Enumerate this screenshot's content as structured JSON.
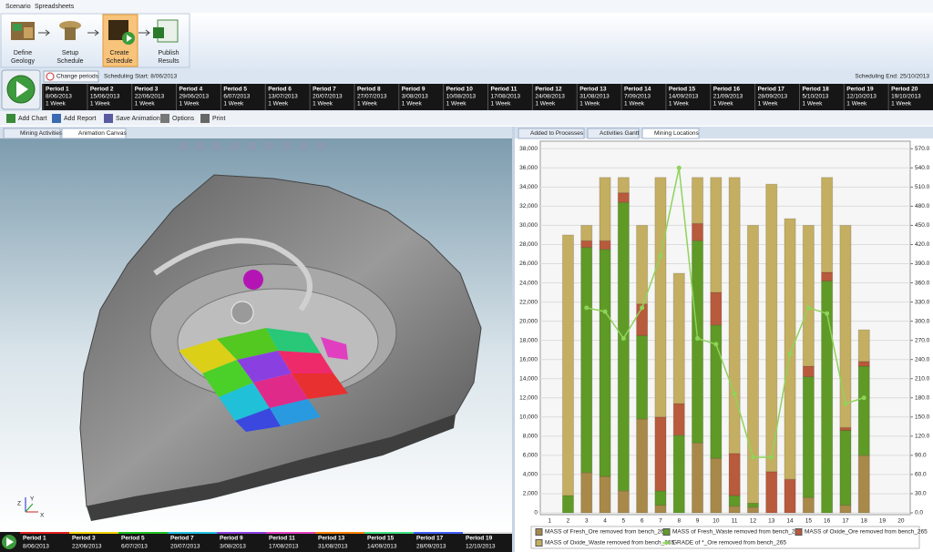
{
  "menu": [
    "Scenario",
    "Spreadsheets"
  ],
  "workflow": [
    {
      "lines": [
        "Define",
        "Geology"
      ]
    },
    {
      "lines": [
        "Setup",
        "Schedule"
      ]
    },
    {
      "lines": [
        "Create",
        "Schedule"
      ]
    },
    {
      "lines": [
        "Publish",
        "Results"
      ]
    }
  ],
  "scheduler": {
    "change_periods": "Change periods",
    "start": "Scheduling Start: 8/06/2013",
    "end": "Scheduling End: 25/10/2013",
    "periods": [
      {
        "name": "Period 1",
        "date": "8/06/2013",
        "length": "1 Week"
      },
      {
        "name": "Period 2",
        "date": "15/06/2013",
        "length": "1 Week"
      },
      {
        "name": "Period 3",
        "date": "22/06/2013",
        "length": "1 Week"
      },
      {
        "name": "Period 4",
        "date": "29/06/2013",
        "length": "1 Week"
      },
      {
        "name": "Period 5",
        "date": "6/07/2013",
        "length": "1 Week"
      },
      {
        "name": "Period 6",
        "date": "13/07/2013",
        "length": "1 Week"
      },
      {
        "name": "Period 7",
        "date": "20/07/2013",
        "length": "1 Week"
      },
      {
        "name": "Period 8",
        "date": "27/07/2013",
        "length": "1 Week"
      },
      {
        "name": "Period 9",
        "date": "3/08/2013",
        "length": "1 Week"
      },
      {
        "name": "Period 10",
        "date": "10/08/2013",
        "length": "1 Week"
      },
      {
        "name": "Period 11",
        "date": "17/08/2013",
        "length": "1 Week"
      },
      {
        "name": "Period 12",
        "date": "24/08/2013",
        "length": "1 Week"
      },
      {
        "name": "Period 13",
        "date": "31/08/2013",
        "length": "1 Week"
      },
      {
        "name": "Period 14",
        "date": "7/09/2013",
        "length": "1 Week"
      },
      {
        "name": "Period 15",
        "date": "14/09/2013",
        "length": "1 Week"
      },
      {
        "name": "Period 16",
        "date": "21/09/2013",
        "length": "1 Week"
      },
      {
        "name": "Period 17",
        "date": "28/09/2013",
        "length": "1 Week"
      },
      {
        "name": "Period 18",
        "date": "5/10/2013",
        "length": "1 Week"
      },
      {
        "name": "Period 19",
        "date": "12/10/2013",
        "length": "1 Week"
      },
      {
        "name": "Period 20",
        "date": "19/10/2013",
        "length": "1 Week"
      }
    ]
  },
  "toolbar": [
    "Add Chart",
    "Add Report",
    "Save Animation",
    "Options",
    "Print"
  ],
  "left_tabs": [
    "Mining Activities",
    "Animation Canvas"
  ],
  "right_tabs": [
    "Added to Processes",
    "Activities Gantt",
    "Mining Locations"
  ],
  "view_axes": [
    "X",
    "Y",
    "Z"
  ],
  "chart_data": {
    "type": "bar",
    "stacked": true,
    "categories": [
      "1",
      "2",
      "3",
      "4",
      "5",
      "6",
      "7",
      "8",
      "9",
      "10",
      "11",
      "12",
      "13",
      "14",
      "15",
      "16",
      "17",
      "18",
      "19",
      "20"
    ],
    "series": [
      {
        "name": "MASS of Fresh_Ore removed from bench_265",
        "color": "#a8894a",
        "values": [
          0,
          0,
          4200,
          3800,
          2300,
          9800,
          800,
          0,
          7300,
          5700,
          700,
          600,
          0,
          0,
          1600,
          0,
          800,
          6000,
          0,
          0
        ]
      },
      {
        "name": "MASS of Fresh_Waste removed from bench_265",
        "color": "#5f9a26",
        "values": [
          0,
          1800,
          23500,
          23700,
          30100,
          8700,
          1500,
          8100,
          21100,
          13900,
          1100,
          400,
          0,
          0,
          12600,
          24200,
          7800,
          9300,
          0,
          0
        ]
      },
      {
        "name": "MASS of Oxide_Ore removed from bench_265",
        "color": "#b85a3c",
        "values": [
          0,
          0,
          700,
          900,
          1000,
          3300,
          7700,
          3300,
          1800,
          3400,
          4400,
          0,
          4300,
          3500,
          1100,
          900,
          300,
          500,
          0,
          0
        ]
      },
      {
        "name": "MASS of Oxide_Waste removed from bench_265",
        "color": "#c4ae62",
        "values": [
          0,
          27200,
          1600,
          6600,
          1600,
          8200,
          25000,
          13600,
          4800,
          12000,
          28800,
          29000,
          30000,
          27200,
          14700,
          9900,
          21100,
          3300,
          0,
          0
        ]
      },
      {
        "name": "GRADE of *_Ore removed from bench_265",
        "color": "#8fd35a",
        "type": "line",
        "axis": "y2",
        "values": [
          null,
          null,
          321,
          315,
          273,
          321,
          402,
          540,
          273,
          264,
          186,
          87,
          87,
          249,
          321,
          312,
          171,
          180,
          null,
          null
        ]
      }
    ],
    "ylim": [
      0,
      38500
    ],
    "yticks": [
      0,
      {
        "value": 2000,
        "label": "2,000"
      },
      {
        "value": 4000,
        "label": "4,000"
      },
      {
        "value": 6000,
        "label": "6,000"
      },
      {
        "value": 8000,
        "label": "8,000"
      },
      {
        "value": 10000,
        "label": "10,000"
      },
      {
        "value": 12000,
        "label": "12,000"
      },
      {
        "value": 14000,
        "label": "14,000"
      },
      {
        "value": 16000,
        "label": "16,000"
      },
      {
        "value": 18000,
        "label": "18,000"
      },
      {
        "value": 20000,
        "label": "20,000"
      },
      {
        "value": 22000,
        "label": "22,000"
      },
      {
        "value": 24000,
        "label": "24,000"
      },
      {
        "value": 26000,
        "label": "26,000"
      },
      {
        "value": 28000,
        "label": "28,000"
      },
      {
        "value": 30000,
        "label": "30,000"
      },
      {
        "value": 32000,
        "label": "32,000"
      },
      {
        "value": 34000,
        "label": "34,000"
      },
      {
        "value": 36000,
        "label": "36,000"
      },
      {
        "value": 38000,
        "label": "38,000"
      }
    ],
    "y2lim": [
      0,
      577.5
    ],
    "y2ticks": [
      {
        "value": 0,
        "label": "0.0"
      },
      {
        "value": 30,
        "label": "30.0"
      },
      {
        "value": 60,
        "label": "60.0"
      },
      {
        "value": 90,
        "label": "90.0"
      },
      {
        "value": 120,
        "label": "120.0"
      },
      {
        "value": 150,
        "label": "150.0"
      },
      {
        "value": 180,
        "label": "180.0"
      },
      {
        "value": 210,
        "label": "210.0"
      },
      {
        "value": 240,
        "label": "240.0"
      },
      {
        "value": 270,
        "label": "270.0"
      },
      {
        "value": 300,
        "label": "300.0"
      },
      {
        "value": 330,
        "label": "330.0"
      },
      {
        "value": 360,
        "label": "360.0"
      },
      {
        "value": 390,
        "label": "390.0"
      },
      {
        "value": 420,
        "label": "420.0"
      },
      {
        "value": 450,
        "label": "450.0"
      },
      {
        "value": 480,
        "label": "480.0"
      },
      {
        "value": 510,
        "label": "510.0"
      },
      {
        "value": 540,
        "label": "540.0"
      },
      {
        "value": 570,
        "label": "570.0"
      }
    ],
    "grid": true,
    "legend": "bottom"
  }
}
